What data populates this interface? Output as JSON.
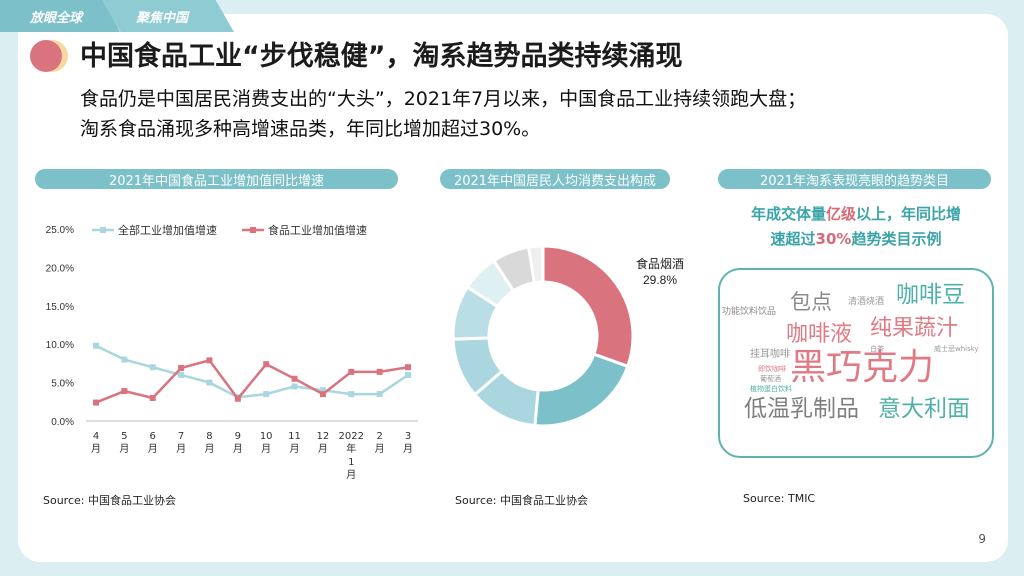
{
  "header": {
    "tabs": [
      "放眼全球",
      "聚焦中国"
    ]
  },
  "title": "中国食品工业“步伐稳健”，淘系趋势品类持续涌现",
  "subtitle_lines": [
    "食品仍是中国居民消费支出的“大头”，2021年7月以来，中国食品工业持续领跑大盘；",
    "淘系食品涌现多种高增速品类，年同比增加超过30%。"
  ],
  "section_headers": [
    "2021年中国食品工业增加值同比增速",
    "2021年中国居民人均消费支出构成",
    "2021年淘系表现亮眼的趋势类目"
  ],
  "sources": [
    "Source: 中国食品工业协会",
    "Source: 中国食品工业协会",
    "Source: TMIC"
  ],
  "page_number": "9",
  "colors": {
    "teal": "#7cc1c9",
    "pink": "#d9747f",
    "lightblue": "#a9d6df",
    "text": "#1b1b1b"
  },
  "chart_data": [
    {
      "type": "line",
      "title": "2021年中国食品工业增加值同比增速",
      "categories": [
        "4月",
        "5月",
        "6月",
        "7月",
        "8月",
        "9月",
        "10月",
        "11月",
        "12月",
        "2022年1月",
        "2月",
        "3月"
      ],
      "series": [
        {
          "name": "全部工业增加值增速",
          "color": "#a9d6df",
          "values": [
            9.8,
            8.0,
            7.0,
            6.0,
            5.0,
            3.1,
            3.5,
            4.5,
            4.0,
            3.5,
            3.5,
            6.0
          ]
        },
        {
          "name": "食品工业增加值增速",
          "color": "#d9747f",
          "values": [
            2.4,
            3.9,
            3.0,
            6.9,
            7.9,
            2.9,
            7.4,
            5.5,
            3.5,
            6.4,
            6.4,
            7.0
          ]
        }
      ],
      "yticks": [
        "0.0%",
        "5.0%",
        "10.0%",
        "15.0%",
        "20.0%",
        "25.0%"
      ],
      "ylim": [
        0,
        25
      ],
      "legend": "top"
    },
    {
      "type": "pie",
      "title": "2021年中国居民人均消费支出构成",
      "label": "食品烟酒",
      "label_value": "29.8%",
      "values": [
        29.8,
        20.5,
        12.0,
        10.5,
        9.5,
        6.5,
        6.5,
        2.5
      ],
      "colors": [
        "#d9747f",
        "#7cc1c9",
        "#a9d6df",
        "#a9d6df",
        "#b9dee6",
        "#dff0f3",
        "#d9d9d9",
        "#efefef"
      ]
    }
  ],
  "wordcloud": {
    "title_lines": [
      {
        "pre": "年成交体量",
        "hl": "亿级",
        "post": "以上，年同比增"
      },
      {
        "pre": "速超过",
        "hl": "30%",
        "post": "趋势类目示例"
      }
    ],
    "words": [
      {
        "text": "黑巧克力",
        "color": "#e07a84"
      },
      {
        "text": "低温乳制品",
        "color": "#7f7f7f"
      },
      {
        "text": "意大利面",
        "color": "#4fb1a9"
      },
      {
        "text": "纯果蔬汁",
        "color": "#e07a84"
      },
      {
        "text": "咖啡液",
        "color": "#e07a84"
      },
      {
        "text": "咖啡豆",
        "color": "#4fb1a9"
      },
      {
        "text": "包点",
        "color": "#8a8a8a"
      },
      {
        "text": "功能饮料饮品",
        "color": "#8a8a8a"
      },
      {
        "text": "清酒烧酒",
        "color": "#9a9a9a"
      },
      {
        "text": "挂耳咖啡",
        "color": "#9a9a9a"
      },
      {
        "text": "即饮咖啡",
        "color": "#e07a84"
      },
      {
        "text": "威士忌whisky",
        "color": "#9a9a9a"
      },
      {
        "text": "白茶",
        "color": "#9a9a9a"
      },
      {
        "text": "葡萄酒",
        "color": "#9a9a9a"
      },
      {
        "text": "植物蛋白饮料",
        "color": "#4fb1a9"
      }
    ]
  }
}
